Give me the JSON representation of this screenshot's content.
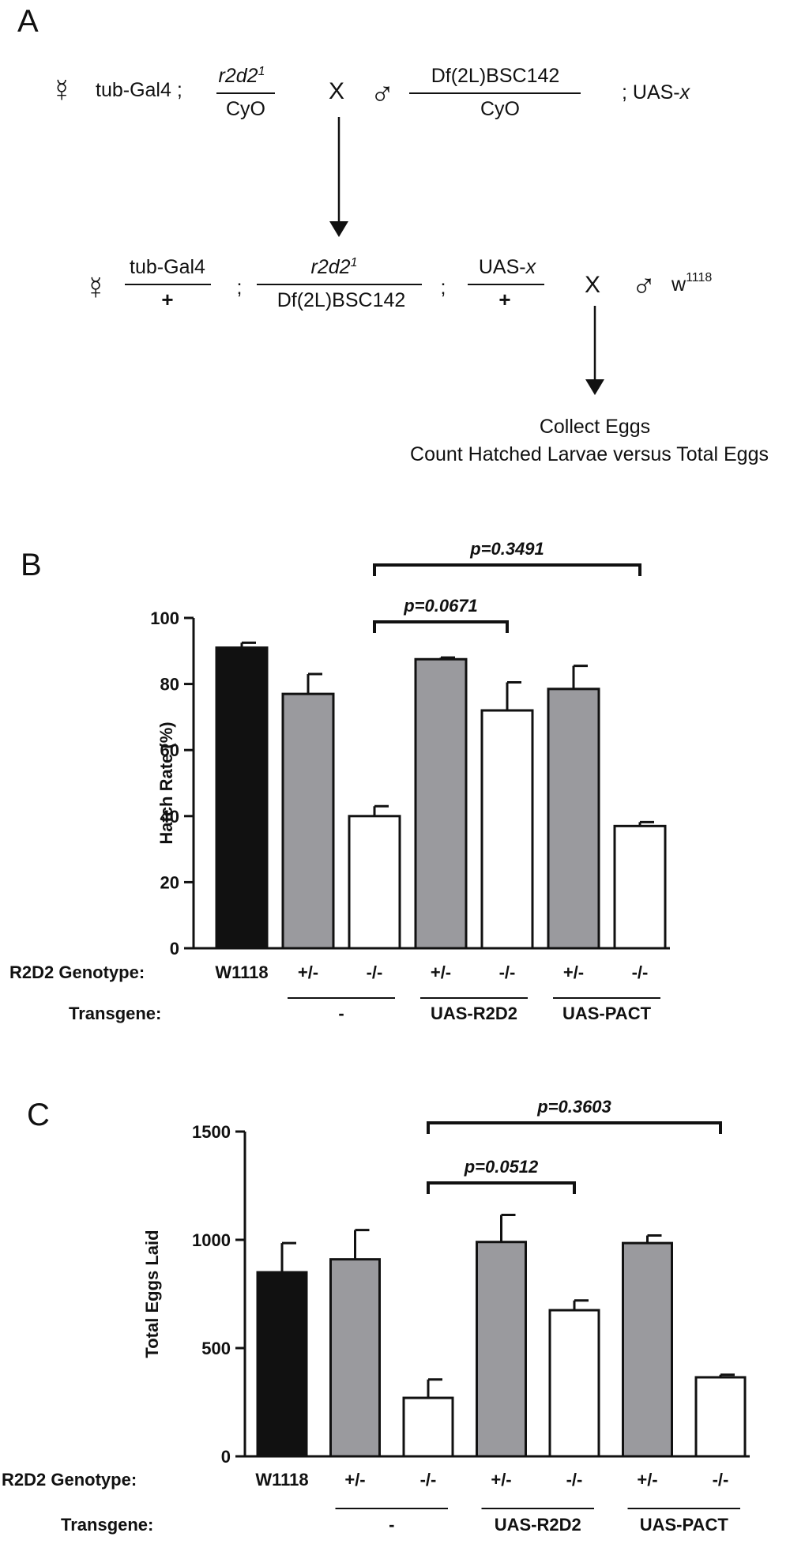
{
  "panel_a": {
    "label": "A",
    "female_symbol": "☿",
    "male_symbol": "♂",
    "cross_symbol": "X",
    "sep": ";",
    "p_tub": "tub-Gal4 ;",
    "p_r2d2_top": "r2d2",
    "p_r2d2_sup": "1",
    "p_cyo_left": "CyO",
    "p_df_top": "Df(2L)BSC142",
    "p_cyo_right": "CyO",
    "p_uas_prefix": "; UAS-",
    "p_uas_x": "x",
    "f1_tub_top": "tub-Gal4",
    "f1_tub_bottom": "+",
    "f1_r2d2_top": "r2d2",
    "f1_r2d2_sup": "1",
    "f1_df_bottom": "Df(2L)BSC142",
    "f1_uas_prefix": "UAS-",
    "f1_uas_x": "x",
    "f1_uas_bottom": "+",
    "w_main": "w",
    "w_sup": "1118",
    "collect": "Collect Eggs",
    "count": "Count Hatched Larvae versus Total Eggs"
  },
  "chart_data": [
    {
      "panel": "B",
      "type": "bar",
      "ylabel": "Hatch Rate (%)",
      "ylim": [
        0,
        100
      ],
      "yticks": [
        "0",
        "20",
        "40",
        "60",
        "80",
        "100"
      ],
      "genotype_label": "R2D2 Genotype:",
      "transgene_label": "Transgene:",
      "categories": [
        "W1118",
        "+/-",
        "-/-",
        "+/-",
        "-/-",
        "+/-",
        "-/-"
      ],
      "values": [
        91,
        77,
        40,
        87.5,
        72,
        78.5,
        37
      ],
      "errors": [
        1.5,
        6,
        3,
        0.5,
        8.5,
        7,
        1.2
      ],
      "fill": [
        "#111111",
        "#9a9a9e",
        "#ffffff",
        "#9a9a9e",
        "#ffffff",
        "#9a9a9e",
        "#ffffff"
      ],
      "transgene_groups": [
        {
          "label": "-",
          "from": 1,
          "to": 2
        },
        {
          "label": "UAS-R2D2",
          "from": 3,
          "to": 4
        },
        {
          "label": "UAS-PACT",
          "from": 5,
          "to": 6
        }
      ],
      "comparisons": [
        {
          "from": 2,
          "to": 4,
          "label": "p=0.0671"
        },
        {
          "from": 2,
          "to": 6,
          "label": "p=0.3491"
        }
      ]
    },
    {
      "panel": "C",
      "type": "bar",
      "ylabel": "Total Eggs Laid",
      "ylim": [
        0,
        1500
      ],
      "yticks": [
        "0",
        "500",
        "1000",
        "1500"
      ],
      "genotype_label": "R2D2 Genotype:",
      "transgene_label": "Transgene:",
      "categories": [
        "W1118",
        "+/-",
        "-/-",
        "+/-",
        "-/-",
        "+/-",
        "-/-"
      ],
      "values": [
        850,
        910,
        270,
        990,
        675,
        985,
        365
      ],
      "errors": [
        135,
        135,
        85,
        125,
        45,
        35,
        12
      ],
      "fill": [
        "#111111",
        "#9a9a9e",
        "#ffffff",
        "#9a9a9e",
        "#ffffff",
        "#9a9a9e",
        "#ffffff"
      ],
      "transgene_groups": [
        {
          "label": "-",
          "from": 1,
          "to": 2
        },
        {
          "label": "UAS-R2D2",
          "from": 3,
          "to": 4
        },
        {
          "label": "UAS-PACT",
          "from": 5,
          "to": 6
        }
      ],
      "comparisons": [
        {
          "from": 2,
          "to": 4,
          "label": "p=0.0512"
        },
        {
          "from": 2,
          "to": 6,
          "label": "p=0.3603"
        }
      ]
    }
  ]
}
